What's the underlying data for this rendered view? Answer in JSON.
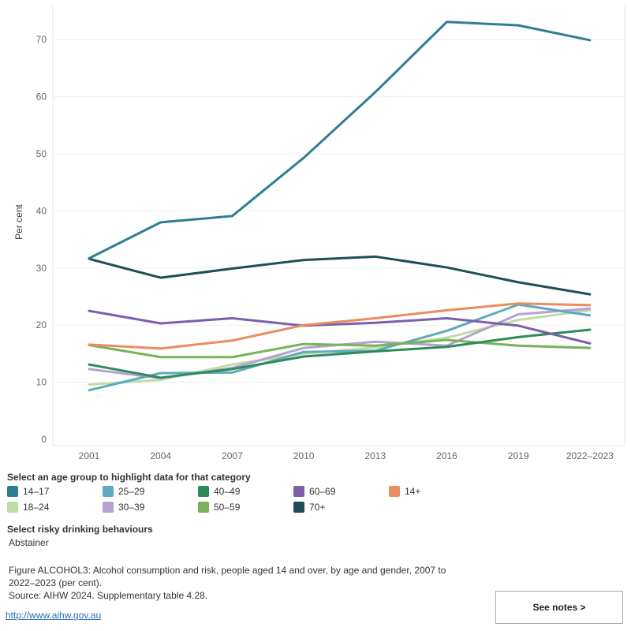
{
  "chart_data": {
    "type": "line",
    "title": "",
    "xlabel": "",
    "ylabel": "Per cent",
    "categories": [
      "2001",
      "2004",
      "2007",
      "2010",
      "2013",
      "2016",
      "2019",
      "2022–2023"
    ],
    "ylim": [
      0,
      75
    ],
    "yticks": [
      0,
      10,
      20,
      30,
      40,
      50,
      60,
      70
    ],
    "grid": true,
    "series": [
      {
        "name": "14–17",
        "color": "#2e7d92",
        "values": [
          31.7,
          38.0,
          39.1,
          49.3,
          60.8,
          73.1,
          72.5,
          69.9
        ]
      },
      {
        "name": "18–24",
        "color": "#bfdca8",
        "values": [
          9.6,
          10.4,
          13.1,
          15.0,
          16.1,
          17.8,
          20.9,
          22.6
        ]
      },
      {
        "name": "25–29",
        "color": "#5fa9be",
        "values": [
          8.6,
          11.6,
          11.7,
          15.3,
          15.5,
          19.0,
          23.6,
          21.7
        ]
      },
      {
        "name": "30–39",
        "color": "#b3a3ce",
        "values": [
          12.3,
          10.7,
          12.5,
          16.0,
          17.1,
          16.4,
          21.9,
          22.9
        ]
      },
      {
        "name": "40–49",
        "color": "#2e8b57",
        "values": [
          13.1,
          10.8,
          12.3,
          14.5,
          15.4,
          16.2,
          17.9,
          19.2
        ]
      },
      {
        "name": "50–59",
        "color": "#79b259",
        "values": [
          16.5,
          14.4,
          14.4,
          16.7,
          16.4,
          17.4,
          16.4,
          16.0
        ]
      },
      {
        "name": "60–69",
        "color": "#7a5fac",
        "values": [
          22.5,
          20.3,
          21.2,
          19.9,
          20.4,
          21.2,
          19.9,
          16.8
        ]
      },
      {
        "name": "70+",
        "color": "#1f4e5a",
        "values": [
          31.6,
          28.3,
          29.9,
          31.4,
          32.0,
          30.1,
          27.5,
          25.4
        ]
      },
      {
        "name": "14+",
        "color": "#eb8c60",
        "values": [
          16.6,
          15.9,
          17.3,
          20.0,
          21.2,
          22.6,
          23.8,
          23.5
        ]
      }
    ]
  },
  "legend_title": "Select an age group to highlight data for that category",
  "risk_title": "Select risky drinking behaviours",
  "risk_value": "Abstainer",
  "caption_line1": "Figure ALCOHOL3: Alcohol consumption and risk, people aged 14 and over, by age and gender, 2007 to 2022–2023 (per cent).",
  "caption_line2": "Source: AIHW 2024. Supplementary table 4.28.",
  "link_text": "http://www.aihw.gov.au",
  "notes_button": "See notes >"
}
